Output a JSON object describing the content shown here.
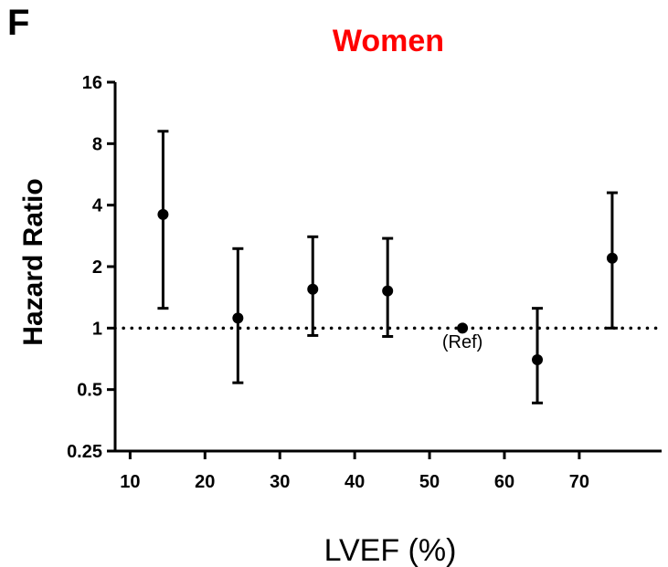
{
  "panel_label": "F",
  "chart_data": {
    "type": "scatter",
    "title": "Women",
    "title_color": "#ff0000",
    "xlabel": "LVEF (%)",
    "ylabel": "Hazard Ratio",
    "yscale": "log2",
    "xlim": [
      8,
      81
    ],
    "ylim": [
      0.25,
      16
    ],
    "x_ticks": [
      10,
      20,
      30,
      40,
      50,
      60,
      70
    ],
    "x_tick_labels": [
      "10",
      "20",
      "30",
      "40",
      "50",
      "60",
      "70"
    ],
    "y_ticks": [
      0.25,
      0.5,
      1,
      2,
      4,
      8,
      16
    ],
    "y_tick_labels": [
      "0.25",
      "0.5",
      "1",
      "2",
      "4",
      "8",
      "16"
    ],
    "reference_line": {
      "y": 1,
      "style": "dotted"
    },
    "grid": false,
    "series": [
      {
        "points": [
          {
            "x": 14.4,
            "y": 3.6,
            "lower": 1.25,
            "upper": 9.2
          },
          {
            "x": 24.4,
            "y": 1.12,
            "lower": 0.54,
            "upper": 2.45
          },
          {
            "x": 34.4,
            "y": 1.55,
            "lower": 0.92,
            "upper": 2.8
          },
          {
            "x": 44.4,
            "y": 1.52,
            "lower": 0.91,
            "upper": 2.75
          },
          {
            "x": 54.4,
            "y": 1.0
          },
          {
            "x": 64.4,
            "y": 0.7,
            "lower": 0.43,
            "upper": 1.25
          },
          {
            "x": 74.4,
            "y": 2.2,
            "lower": 1.0,
            "upper": 4.6
          }
        ]
      }
    ],
    "annotations": [
      {
        "text": "(Ref)",
        "x": 54.4,
        "y": 0.8
      }
    ]
  }
}
